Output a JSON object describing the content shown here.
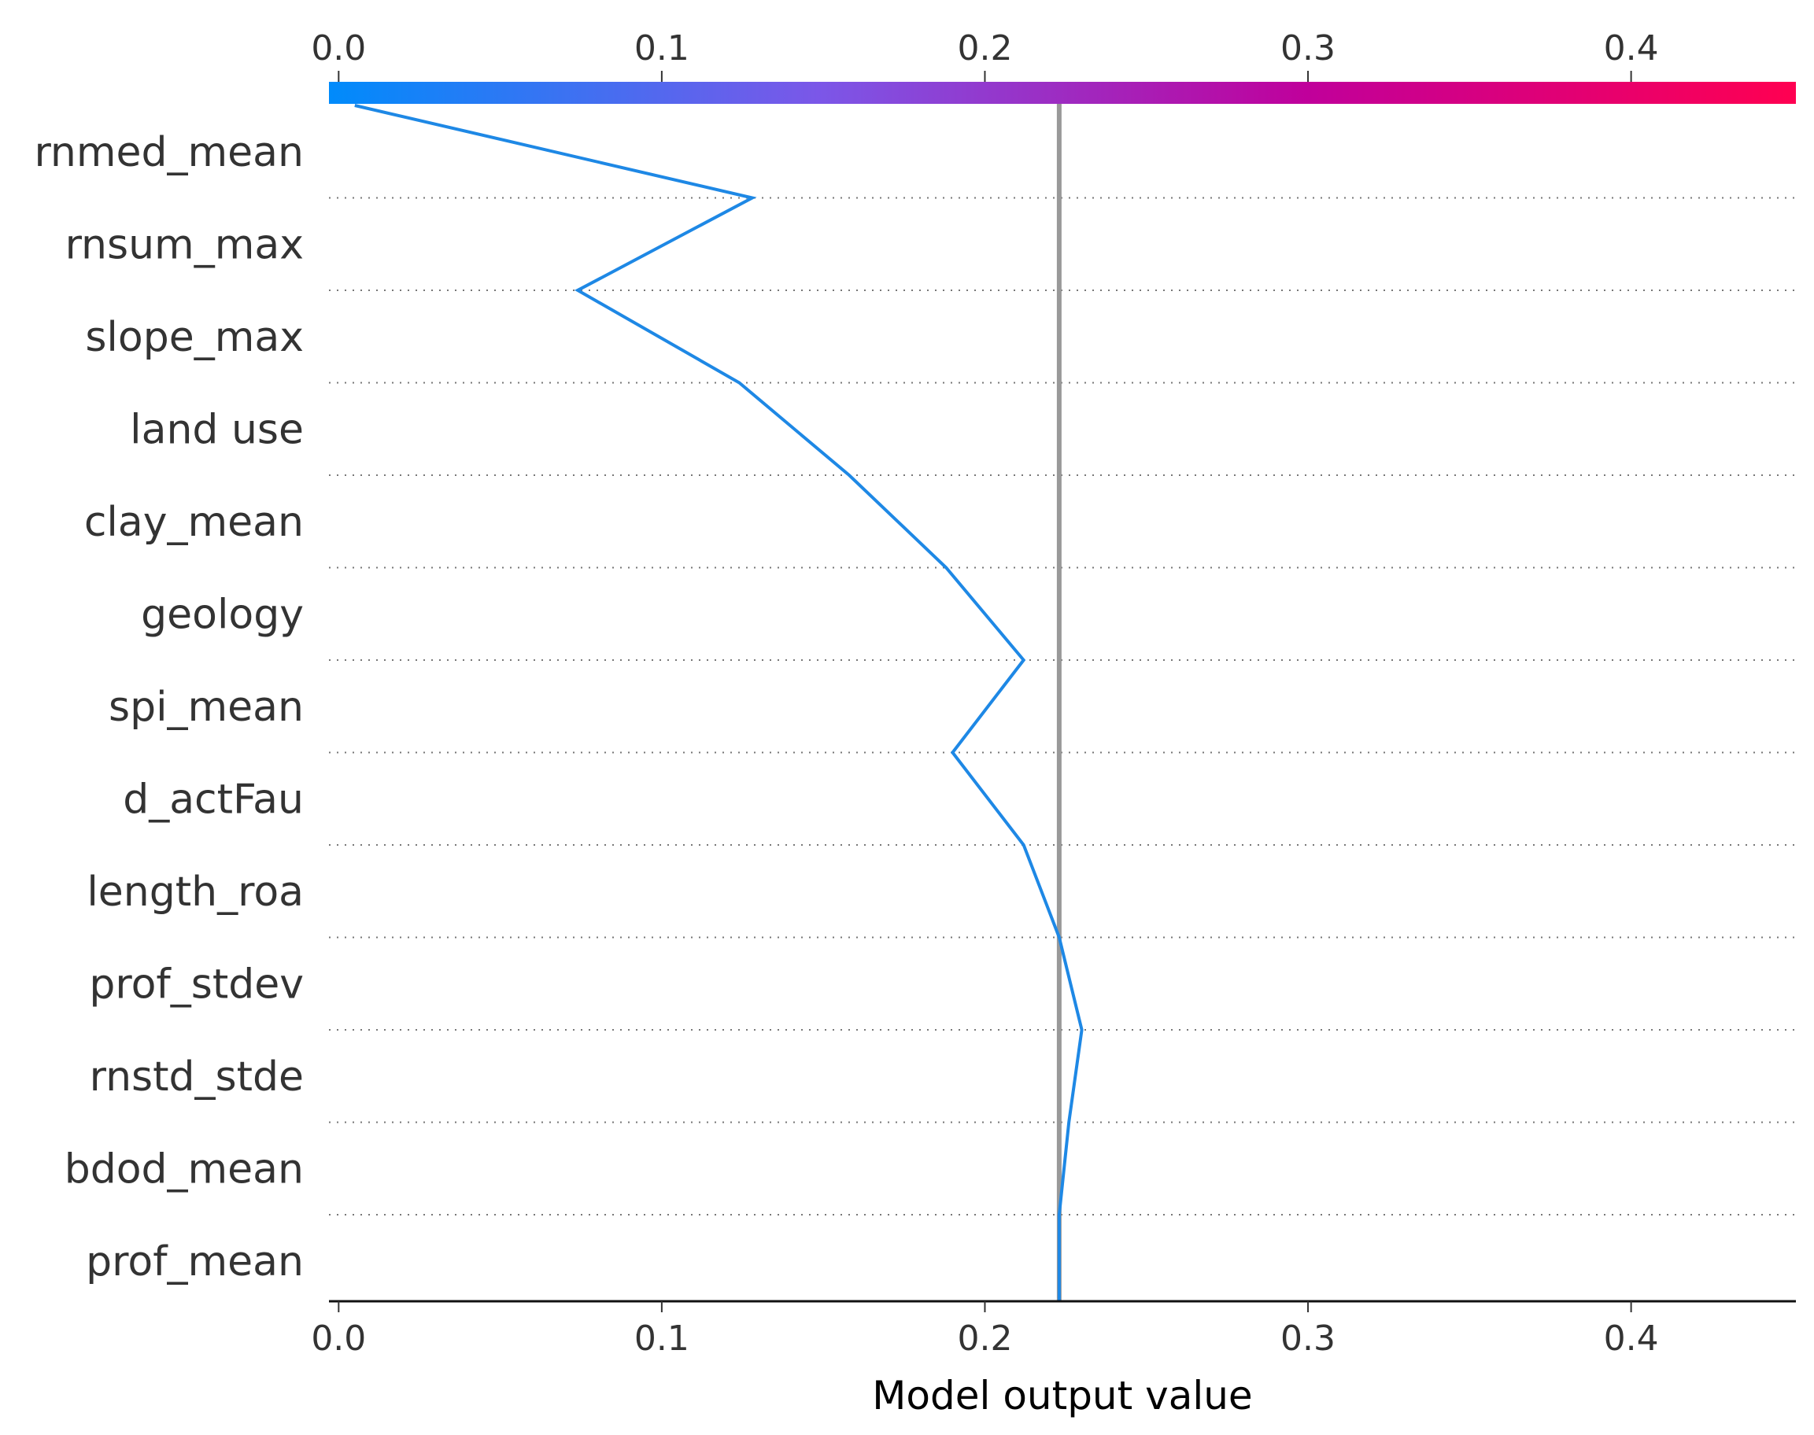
{
  "chart_data": {
    "type": "line",
    "subtype": "shap-decision-plot",
    "xlabel": "Model output value",
    "xlim": [
      -0.003,
      0.451
    ],
    "x_ticks": [
      0.0,
      0.1,
      0.2,
      0.3,
      0.4
    ],
    "x_tick_labels": [
      "0.0",
      "0.1",
      "0.2",
      "0.3",
      "0.4"
    ],
    "features_top_to_bottom": [
      "rnmed_mean",
      "rnsum_max",
      "slope_max",
      "land use",
      "clay_mean",
      "geology",
      "spi_mean",
      "d_actFau",
      "length_roa",
      "prof_stdev",
      "rnstd_stde",
      "bdod_mean",
      "prof_mean"
    ],
    "base_value": 0.223,
    "series": [
      {
        "name": "decision path",
        "color": "#1e88e5",
        "values_top_to_bottom": [
          0.005,
          0.128,
          0.074,
          0.124,
          0.158,
          0.188,
          0.212,
          0.19,
          0.212,
          0.223,
          0.23,
          0.226,
          0.223,
          0.223
        ]
      }
    ],
    "colorbar": {
      "range": [
        0.0,
        0.45
      ],
      "colors": [
        "#008bfb",
        "#7b57e8",
        "#c0009b",
        "#ff0051"
      ]
    },
    "grid": "dotted horizontal lines between features"
  }
}
